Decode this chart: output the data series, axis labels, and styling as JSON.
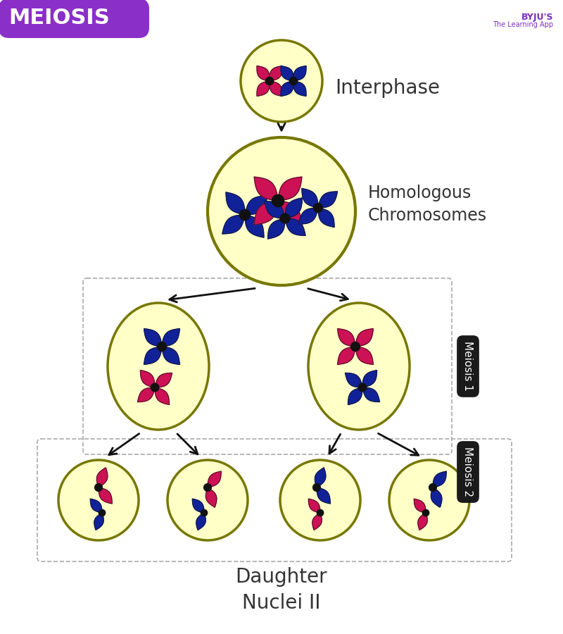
{
  "title": "MEIOSIS",
  "title_bg": "#8B2FC9",
  "title_text_color": "#ffffff",
  "bg_color": "#ffffff",
  "cell_fill": "#FFFFC8",
  "cell_edge": "#888800",
  "label_interphase": "Interphase",
  "label_homologous": "Homologous\nChromosomes",
  "label_meiosis1": "Meiosis 1",
  "label_meiosis2": "Meiosis 2",
  "label_daughter": "Daughter\nNuclei II",
  "label_color": "#333333",
  "meiosis_label_bg": "#1a1a1a",
  "meiosis_label_color": "#ffffff",
  "pink": "#CC1155",
  "blue": "#112299",
  "arrow_color": "#111111",
  "dashed_color": "#999999"
}
